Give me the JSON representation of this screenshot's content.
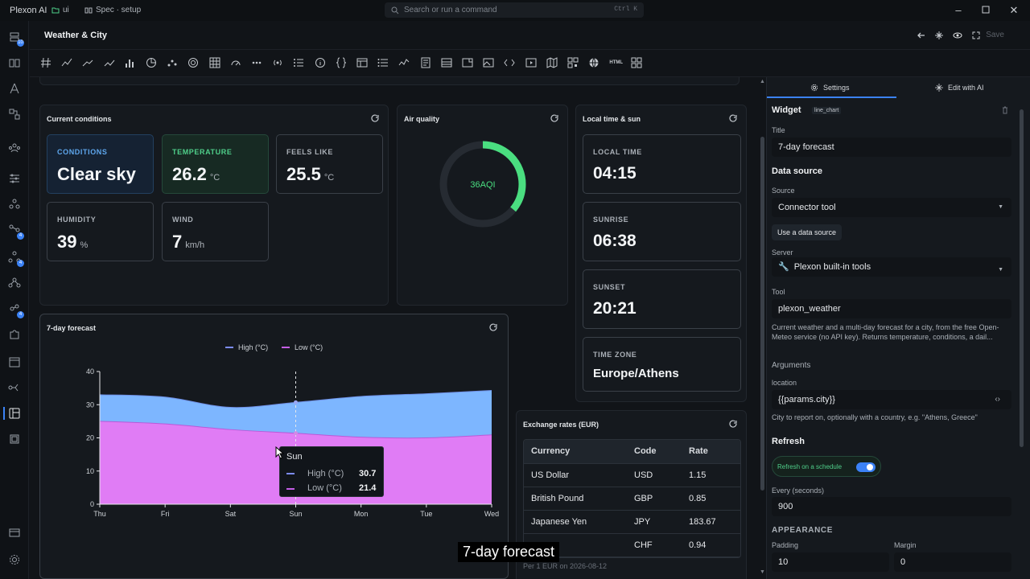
{
  "titlebar": {
    "app_name": "Plexon AI",
    "crumb_folder": "ui",
    "crumb_spec": "Spec · setup",
    "search_placeholder": "Search or run a command",
    "search_shortcut": "Ctrl K"
  },
  "rail": {
    "badges": [
      "10",
      "4",
      "4",
      "4"
    ]
  },
  "header": {
    "title": "Weather & City",
    "save_label": "Save"
  },
  "toolbar": {
    "html_label": "HTML"
  },
  "current": {
    "title": "Current conditions",
    "cards": [
      {
        "label": "CONDITIONS",
        "value": "Clear sky",
        "unit": ""
      },
      {
        "label": "TEMPERATURE",
        "value": "26.2",
        "unit": "°C"
      },
      {
        "label": "FEELS LIKE",
        "value": "25.5",
        "unit": "°C"
      },
      {
        "label": "HUMIDITY",
        "value": "39",
        "unit": "%"
      },
      {
        "label": "WIND",
        "value": "7",
        "unit": "km/h"
      }
    ]
  },
  "air": {
    "title": "Air quality",
    "value": "36",
    "unit": "AQI",
    "level": 0.36,
    "color": "#4ade80"
  },
  "local": {
    "title": "Local time & sun",
    "cards": [
      {
        "label": "LOCAL TIME",
        "value": "04:15"
      },
      {
        "label": "SUNRISE",
        "value": "06:38"
      },
      {
        "label": "SUNSET",
        "value": "20:21"
      },
      {
        "label": "TIME ZONE",
        "value": "Europe/Athens"
      }
    ]
  },
  "forecast": {
    "title": "7-day forecast",
    "tooltip": {
      "day": "Sun",
      "high_label": "High (°C)",
      "high_value": "30.7",
      "low_label": "Low (°C)",
      "low_value": "21.4"
    }
  },
  "chart_data": {
    "type": "area",
    "categories": [
      "Thu",
      "Fri",
      "Sat",
      "Sun",
      "Mon",
      "Tue",
      "Wed"
    ],
    "series": [
      {
        "name": "High (°C)",
        "values": [
          33,
          32.3,
          29.2,
          30.7,
          32.5,
          33.3,
          34.3
        ],
        "color": "#7db6ff"
      },
      {
        "name": "Low (°C)",
        "values": [
          25,
          24.2,
          22.5,
          21.4,
          20.2,
          20.0,
          20.9
        ],
        "color": "#e07cf5"
      }
    ],
    "ylim": [
      0,
      40
    ],
    "yticks": [
      0,
      10,
      20,
      30,
      40
    ],
    "legend": "top",
    "grid": false
  },
  "rates": {
    "title": "Exchange rates (EUR)",
    "columns": [
      "Currency",
      "Code",
      "Rate"
    ],
    "rows": [
      [
        "US Dollar",
        "USD",
        "1.15"
      ],
      [
        "British Pound",
        "GBP",
        "0.85"
      ],
      [
        "Japanese Yen",
        "JPY",
        "183.67"
      ],
      [
        "",
        "CHF",
        "0.94"
      ]
    ],
    "footer": "Per 1 EUR on 2026-08-12"
  },
  "settings": {
    "tab_settings": "Settings",
    "tab_ai": "Edit with AI",
    "widget_label": "Widget",
    "widget_type": "line_chart",
    "title_label": "Title",
    "title_value": "7-day forecast",
    "data_source_heading": "Data source",
    "source_label": "Source",
    "source_value": "Connector tool",
    "use_data_source_button": "Use a data source",
    "server_label": "Server",
    "server_value": "Plexon built-in tools",
    "tool_label": "Tool",
    "tool_value": "plexon_weather",
    "tool_description": "Current weather and a multi-day forecast for a city, from the free Open-Meteo service (no API key). Returns temperature, conditions, a dail...",
    "arguments_label": "Arguments",
    "location_label": "location",
    "location_value": "{{params.city}}",
    "location_help": "City to report on, optionally with a country, e.g. \"Athens, Greece\"",
    "refresh_heading": "Refresh",
    "refresh_toggle_label": "Refresh on a schedule",
    "refresh_enabled": true,
    "every_label": "Every (seconds)",
    "every_value": "900",
    "appearance_heading": "APPEARANCE",
    "padding_label": "Padding",
    "padding_value": "10",
    "margin_label": "Margin",
    "margin_value": "0"
  },
  "caption": "7-day forecast"
}
